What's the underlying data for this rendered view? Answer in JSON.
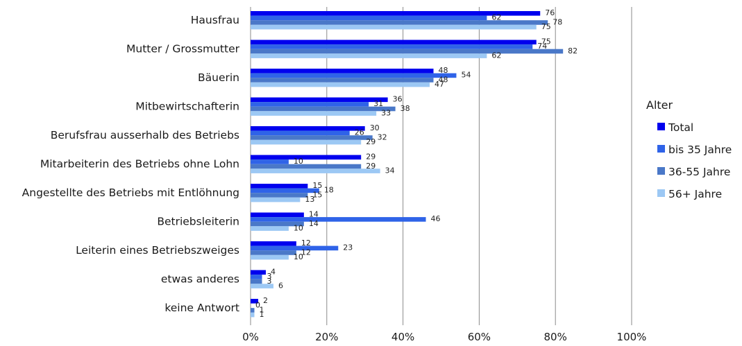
{
  "chart_data": {
    "type": "bar",
    "orientation": "horizontal",
    "categories": [
      "Hausfrau",
      "Mutter / Grossmutter",
      "Bäuerin",
      "Mitbewirtschafterin",
      "Berufsfrau ausserhalb des Betriebs",
      "Mitarbeiterin des Betriebs ohne Lohn",
      "Angestellte des Betriebs mit Entlöhnung",
      "Betriebsleiterin",
      "Leiterin eines Betriebszweiges",
      "etwas anderes",
      "keine Antwort"
    ],
    "series": [
      {
        "name": "Total",
        "color": "#0000ee",
        "values": [
          76,
          75,
          48,
          36,
          30,
          29,
          15,
          14,
          12,
          4,
          2
        ]
      },
      {
        "name": "bis 35 Jahre",
        "color": "#2f63e8",
        "values": [
          62,
          74,
          54,
          31,
          26,
          10,
          18,
          46,
          23,
          3,
          0
        ]
      },
      {
        "name": "36-55 Jahre",
        "color": "#4a78c8",
        "values": [
          78,
          82,
          48,
          38,
          32,
          29,
          15,
          14,
          12,
          3,
          1
        ]
      },
      {
        "name": "56+ Jahre",
        "color": "#9cc8f4",
        "values": [
          75,
          62,
          47,
          33,
          29,
          34,
          13,
          10,
          10,
          6,
          1
        ]
      }
    ],
    "xlim": [
      0,
      100
    ],
    "xticks": [
      "0%",
      "20%",
      "40%",
      "60%",
      "80%",
      "100%"
    ],
    "legend_title": "Alter",
    "legend_position": "right",
    "grid": true
  }
}
